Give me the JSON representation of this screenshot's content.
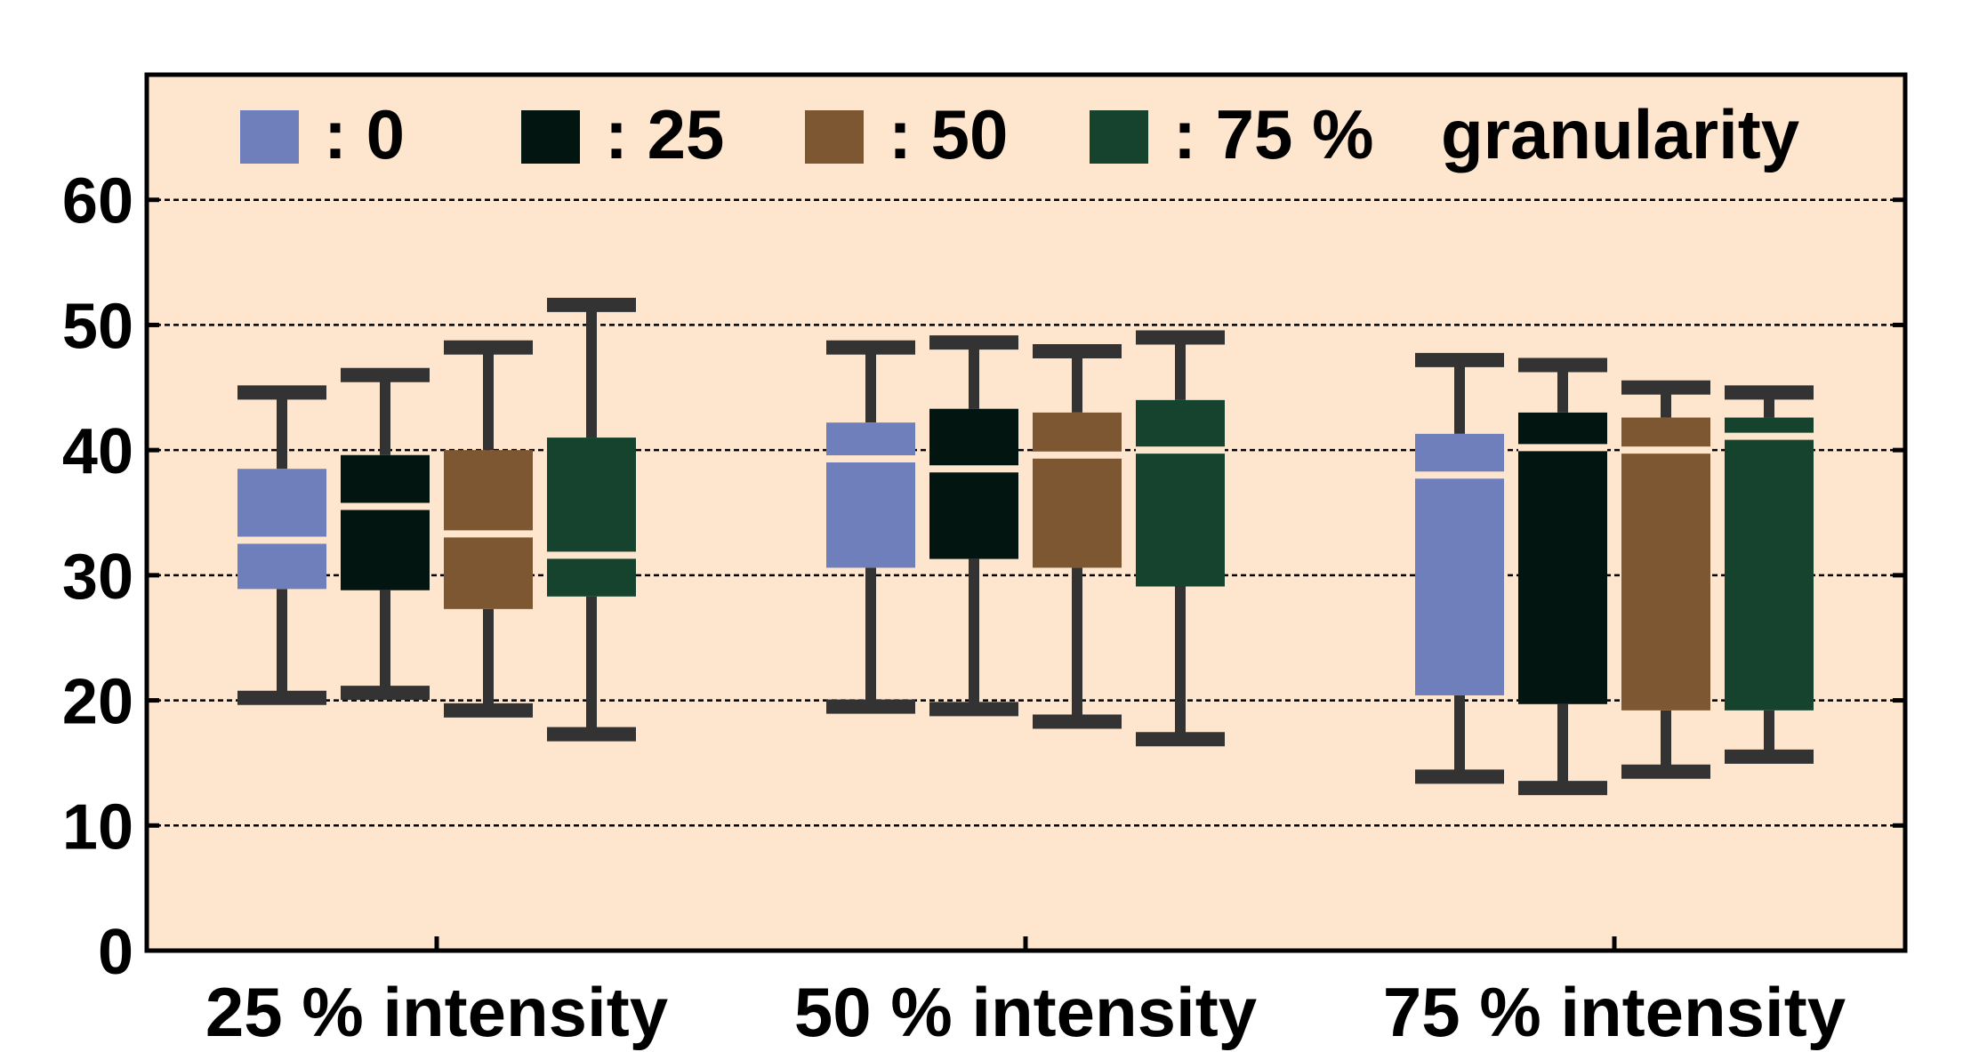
{
  "chart_data": {
    "type": "box",
    "categories": [
      "25 % intensity",
      "50 % intensity",
      "75 % intensity"
    ],
    "yticks": [
      "0",
      "10",
      "20",
      "30",
      "40",
      "50",
      "60"
    ],
    "ylim": [
      0,
      70
    ],
    "grid": true,
    "legend_position": "top",
    "legend": {
      "entries": [
        {
          "label": ":  0",
          "color": "#6f7fbb"
        },
        {
          "label": ": 25",
          "color": "#031510"
        },
        {
          "label": ": 50",
          "color": "#7d5732"
        },
        {
          "label": ": 75 %",
          "color": "#15432e"
        }
      ],
      "suffix": "granularity"
    },
    "colors": {
      "background": "#fee5cd",
      "whisker": "#333333",
      "median": "#fee5cd"
    },
    "series": [
      {
        "name": "0",
        "color": "#6f7fbb",
        "boxes": [
          {
            "min": 20.2,
            "q1": 28.9,
            "median": 32.8,
            "q3": 38.5,
            "max": 44.6
          },
          {
            "min": 19.5,
            "q1": 30.6,
            "median": 39.3,
            "q3": 42.2,
            "max": 48.2
          },
          {
            "min": 13.9,
            "q1": 20.4,
            "median": 38.0,
            "q3": 41.3,
            "max": 47.2
          }
        ]
      },
      {
        "name": "25",
        "color": "#031510",
        "boxes": [
          {
            "min": 20.6,
            "q1": 28.8,
            "median": 35.5,
            "q3": 39.6,
            "max": 46.0
          },
          {
            "min": 19.3,
            "q1": 31.3,
            "median": 38.5,
            "q3": 43.3,
            "max": 48.6
          },
          {
            "min": 13.0,
            "q1": 19.7,
            "median": 40.2,
            "q3": 43.0,
            "max": 46.8
          }
        ]
      },
      {
        "name": "50",
        "color": "#7d5732",
        "boxes": [
          {
            "min": 19.2,
            "q1": 27.3,
            "median": 33.3,
            "q3": 40.0,
            "max": 48.2
          },
          {
            "min": 18.3,
            "q1": 30.6,
            "median": 39.6,
            "q3": 43.0,
            "max": 47.9
          },
          {
            "min": 14.3,
            "q1": 19.2,
            "median": 40.0,
            "q3": 42.6,
            "max": 45.0
          }
        ]
      },
      {
        "name": "75",
        "color": "#15432e",
        "boxes": [
          {
            "min": 17.3,
            "q1": 28.3,
            "median": 31.6,
            "q3": 41.0,
            "max": 51.6
          },
          {
            "min": 16.9,
            "q1": 29.1,
            "median": 40.0,
            "q3": 44.0,
            "max": 49.0
          },
          {
            "min": 15.5,
            "q1": 19.2,
            "median": 41.1,
            "q3": 42.6,
            "max": 44.6
          }
        ]
      }
    ]
  }
}
